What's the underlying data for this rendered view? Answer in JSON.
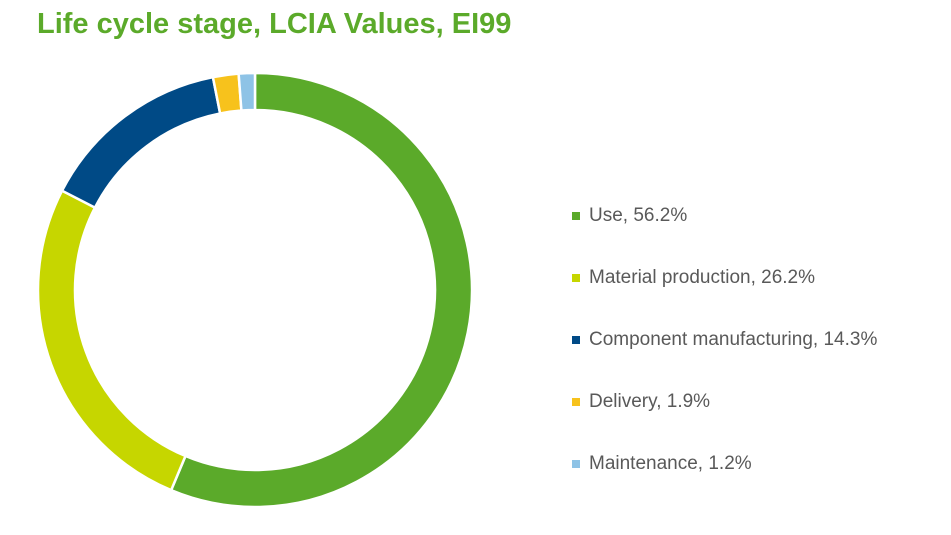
{
  "chart_data": {
    "type": "pie",
    "title": "Life cycle stage, LCIA Values, EI99",
    "title_color": "#5BAA2A",
    "donut": true,
    "legend_position": "right",
    "categories": [
      "Use",
      "Material production",
      "Component manufacturing",
      "Delivery",
      "Maintenance"
    ],
    "values": [
      56.2,
      26.2,
      14.3,
      1.9,
      1.2
    ],
    "colors": [
      "#5BAA2A",
      "#C6D600",
      "#004A86",
      "#F7C21C",
      "#8EC3E6"
    ],
    "legend_labels": [
      "Use, 56.2%",
      "Material production, 26.2%",
      "Component manufacturing, 14.3%",
      "Delivery, 1.9%",
      "Maintenance, 1.2%"
    ]
  }
}
